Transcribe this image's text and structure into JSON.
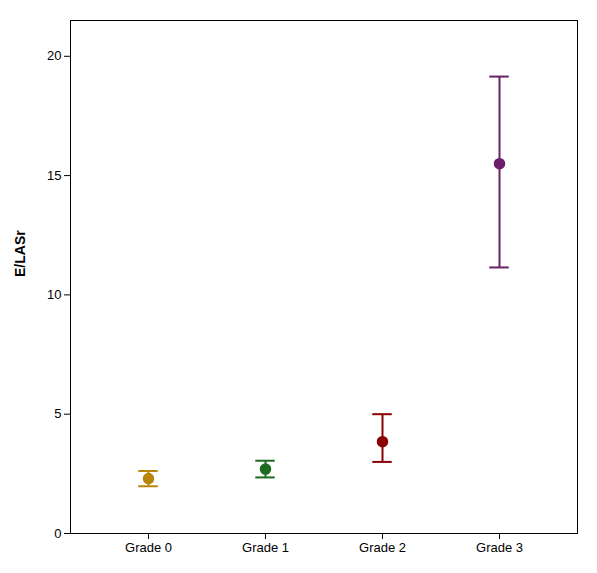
{
  "chart_data": {
    "type": "errorbar",
    "categories": [
      "Grade 0",
      "Grade 1",
      "Grade 2",
      "Grade 3"
    ],
    "values": [
      2.3,
      2.7,
      3.85,
      15.5
    ],
    "errors_low": [
      0.32,
      0.35,
      0.85,
      4.35
    ],
    "errors_high": [
      0.32,
      0.35,
      1.15,
      3.65
    ],
    "colors": [
      "#B8860B",
      "#1E6B1E",
      "#8B0000",
      "#6B1F6B"
    ],
    "ylabel": "E/LASr",
    "ylim": [
      0,
      21.5
    ],
    "yticks": [
      0,
      5,
      10,
      15,
      20
    ]
  }
}
